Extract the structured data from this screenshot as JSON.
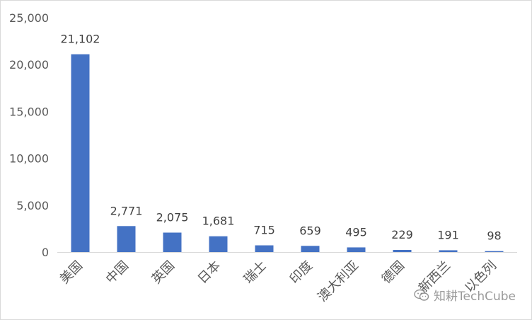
{
  "chart_data": {
    "type": "bar",
    "categories": [
      "美国",
      "中国",
      "英国",
      "日本",
      "瑞士",
      "印度",
      "澳大利亚",
      "德国",
      "新西兰",
      "以色列"
    ],
    "values": [
      21102,
      2771,
      2075,
      1681,
      715,
      659,
      495,
      229,
      191,
      98
    ],
    "data_labels": [
      "21,102",
      "2,771",
      "2,075",
      "1,681",
      "715",
      "659",
      "495",
      "229",
      "191",
      "98"
    ],
    "title": "",
    "xlabel": "",
    "ylabel": "",
    "ylim": [
      0,
      25000
    ],
    "yticks": [
      0,
      5000,
      10000,
      15000,
      20000,
      25000
    ],
    "ytick_labels": [
      "0",
      "5,000",
      "10,000",
      "15,000",
      "20,000",
      "25,000"
    ],
    "grid": false,
    "legend": "none",
    "bar_color": "#4472C4"
  },
  "watermark": {
    "text": "知耕TechCube",
    "icon": "wechat-icon"
  }
}
